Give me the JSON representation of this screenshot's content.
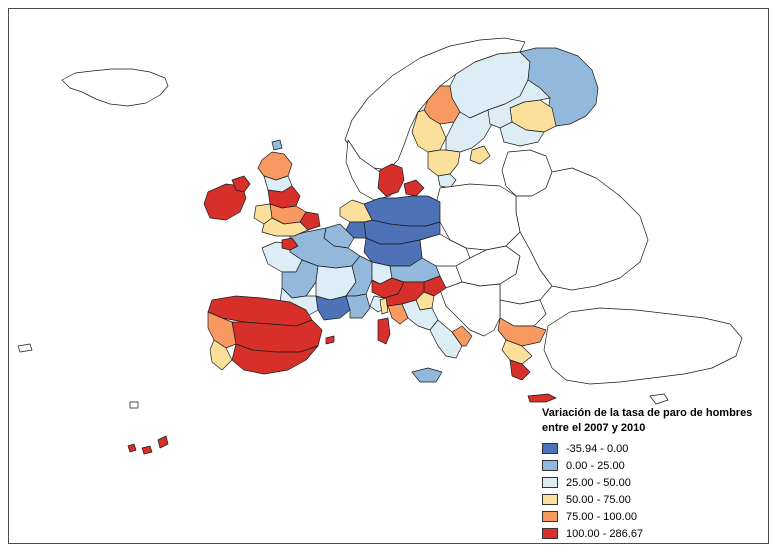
{
  "legend": {
    "title_line1": "Variación de la tasa de paro de hombres",
    "title_line2": "entre el 2007 y 2010",
    "classes": [
      {
        "label": "-35.94 - 0.00",
        "color": "#4d72b8"
      },
      {
        "label": "0.00 - 25.00",
        "color": "#92b9db"
      },
      {
        "label": "25.00 - 50.00",
        "color": "#dcedf6"
      },
      {
        "label": "50.00 - 75.00",
        "color": "#fbe09b"
      },
      {
        "label": "75.00 - 100.00",
        "color": "#f99962"
      },
      {
        "label": "100.00 - 286.67",
        "color": "#d7302b"
      }
    ],
    "nodata_color": "#ffffff"
  }
}
